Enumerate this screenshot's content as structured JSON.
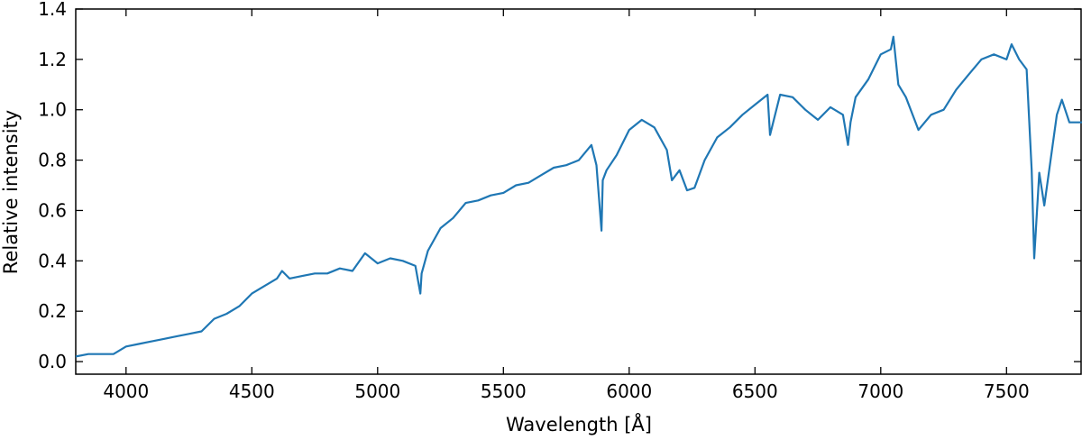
{
  "chart_data": {
    "type": "line",
    "title": "",
    "xlabel": "Wavelength [Å]",
    "ylabel": "Relative intensity",
    "xlim": [
      3800,
      7800
    ],
    "ylim": [
      -0.05,
      1.4
    ],
    "xticks": [
      4000,
      4500,
      5000,
      5500,
      6000,
      6500,
      7000,
      7500
    ],
    "yticks": [
      0.0,
      0.2,
      0.4,
      0.6,
      0.8,
      1.0,
      1.2,
      1.4
    ],
    "xtick_labels": [
      "4000",
      "4500",
      "5000",
      "5500",
      "6000",
      "6500",
      "7000",
      "7500"
    ],
    "ytick_labels": [
      "0.0",
      "0.2",
      "0.4",
      "0.6",
      "0.8",
      "1.0",
      "1.2",
      "1.4"
    ],
    "grid": false,
    "line_color": "#1f77b4",
    "series": [
      {
        "x": [
          3800,
          3850,
          3900,
          3950,
          4000,
          4050,
          4100,
          4150,
          4200,
          4250,
          4300,
          4350,
          4400,
          4450,
          4500,
          4550,
          4600,
          4620,
          4650,
          4700,
          4750,
          4800,
          4850,
          4900,
          4950,
          5000,
          5050,
          5100,
          5150,
          5170,
          5175,
          5200,
          5250,
          5300,
          5350,
          5400,
          5450,
          5500,
          5550,
          5600,
          5650,
          5700,
          5750,
          5800,
          5850,
          5870,
          5890,
          5895,
          5910,
          5950,
          6000,
          6050,
          6100,
          6150,
          6170,
          6200,
          6230,
          6260,
          6300,
          6350,
          6400,
          6450,
          6500,
          6550,
          6560,
          6600,
          6650,
          6700,
          6750,
          6800,
          6850,
          6870,
          6880,
          6900,
          6950,
          7000,
          7040,
          7050,
          7070,
          7100,
          7150,
          7200,
          7250,
          7300,
          7350,
          7400,
          7450,
          7500,
          7520,
          7550,
          7580,
          7600,
          7610,
          7630,
          7650,
          7700,
          7720,
          7750,
          7800
        ],
        "y": [
          0.02,
          0.03,
          0.03,
          0.03,
          0.06,
          0.07,
          0.08,
          0.09,
          0.1,
          0.11,
          0.12,
          0.17,
          0.19,
          0.22,
          0.27,
          0.3,
          0.33,
          0.36,
          0.33,
          0.34,
          0.35,
          0.35,
          0.37,
          0.36,
          0.43,
          0.39,
          0.41,
          0.4,
          0.38,
          0.27,
          0.35,
          0.44,
          0.53,
          0.57,
          0.63,
          0.64,
          0.66,
          0.67,
          0.7,
          0.71,
          0.74,
          0.77,
          0.78,
          0.8,
          0.86,
          0.78,
          0.52,
          0.72,
          0.76,
          0.82,
          0.92,
          0.96,
          0.93,
          0.84,
          0.72,
          0.76,
          0.68,
          0.69,
          0.8,
          0.89,
          0.93,
          0.98,
          1.02,
          1.06,
          0.9,
          1.06,
          1.05,
          1.0,
          0.96,
          1.01,
          0.98,
          0.86,
          0.95,
          1.05,
          1.12,
          1.22,
          1.24,
          1.29,
          1.1,
          1.05,
          0.92,
          0.98,
          1.0,
          1.08,
          1.14,
          1.2,
          1.22,
          1.2,
          1.26,
          1.2,
          1.16,
          0.76,
          0.41,
          0.75,
          0.62,
          0.98,
          1.04,
          0.95,
          0.95
        ]
      }
    ]
  }
}
